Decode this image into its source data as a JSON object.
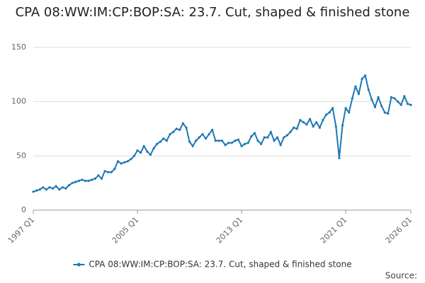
{
  "chart_data": {
    "type": "line",
    "title": "CPA 08:WW:IM:CP:BOP:SA: 23.7. Cut, shaped & finished stone",
    "source": "Source:",
    "categories": [
      "1997 Q1",
      null,
      null,
      null,
      null,
      null,
      null,
      null,
      null,
      null,
      null,
      null,
      null,
      null,
      null,
      null,
      null,
      null,
      null,
      null,
      null,
      null,
      null,
      null,
      null,
      null,
      null,
      null,
      null,
      null,
      null,
      null,
      "2005 Q1",
      null,
      null,
      null,
      null,
      null,
      null,
      null,
      null,
      null,
      null,
      null,
      null,
      null,
      null,
      null,
      null,
      null,
      null,
      null,
      null,
      null,
      null,
      null,
      null,
      null,
      null,
      null,
      null,
      null,
      null,
      null,
      "2013 Q1",
      null,
      null,
      null,
      null,
      null,
      null,
      null,
      null,
      null,
      null,
      null,
      null,
      null,
      null,
      null,
      null,
      null,
      null,
      null,
      null,
      null,
      null,
      null,
      null,
      null,
      null,
      null,
      null,
      null,
      null,
      null,
      "2021 Q1",
      null,
      null,
      null,
      null,
      null,
      null,
      null,
      null,
      null,
      null,
      null,
      null,
      null,
      null,
      null,
      null,
      null,
      null,
      null,
      "2026 Q1"
    ],
    "series": [
      {
        "name": "CPA 08:WW:IM:CP:BOP:SA: 23.7. Cut, shaped & finished stone",
        "color": "#1f78b4",
        "values": [
          17,
          18,
          19,
          21,
          19,
          21,
          20,
          22,
          19,
          21,
          20,
          23,
          25,
          26,
          27,
          28,
          27,
          27,
          28,
          29,
          32,
          29,
          36,
          35,
          35,
          38,
          45,
          43,
          44,
          45,
          47,
          50,
          55,
          53,
          59,
          54,
          51,
          57,
          61,
          63,
          66,
          64,
          70,
          72,
          75,
          74,
          80,
          76,
          63,
          59,
          64,
          67,
          70,
          66,
          70,
          74,
          64,
          64,
          64,
          60,
          62,
          62,
          64,
          65,
          59,
          61,
          62,
          68,
          71,
          64,
          61,
          67,
          67,
          72,
          64,
          67,
          60,
          67,
          69,
          72,
          76,
          75,
          83,
          81,
          79,
          84,
          77,
          81,
          76,
          83,
          88,
          90,
          94,
          77,
          48,
          78,
          94,
          90,
          103,
          114,
          107,
          121,
          124,
          111,
          102,
          95,
          104,
          96,
          90,
          89,
          104,
          103,
          100,
          97,
          105,
          98,
          97
        ]
      }
    ],
    "ylim": [
      0,
      150
    ],
    "yticks": [
      0,
      50,
      100,
      150
    ],
    "grid": true
  }
}
